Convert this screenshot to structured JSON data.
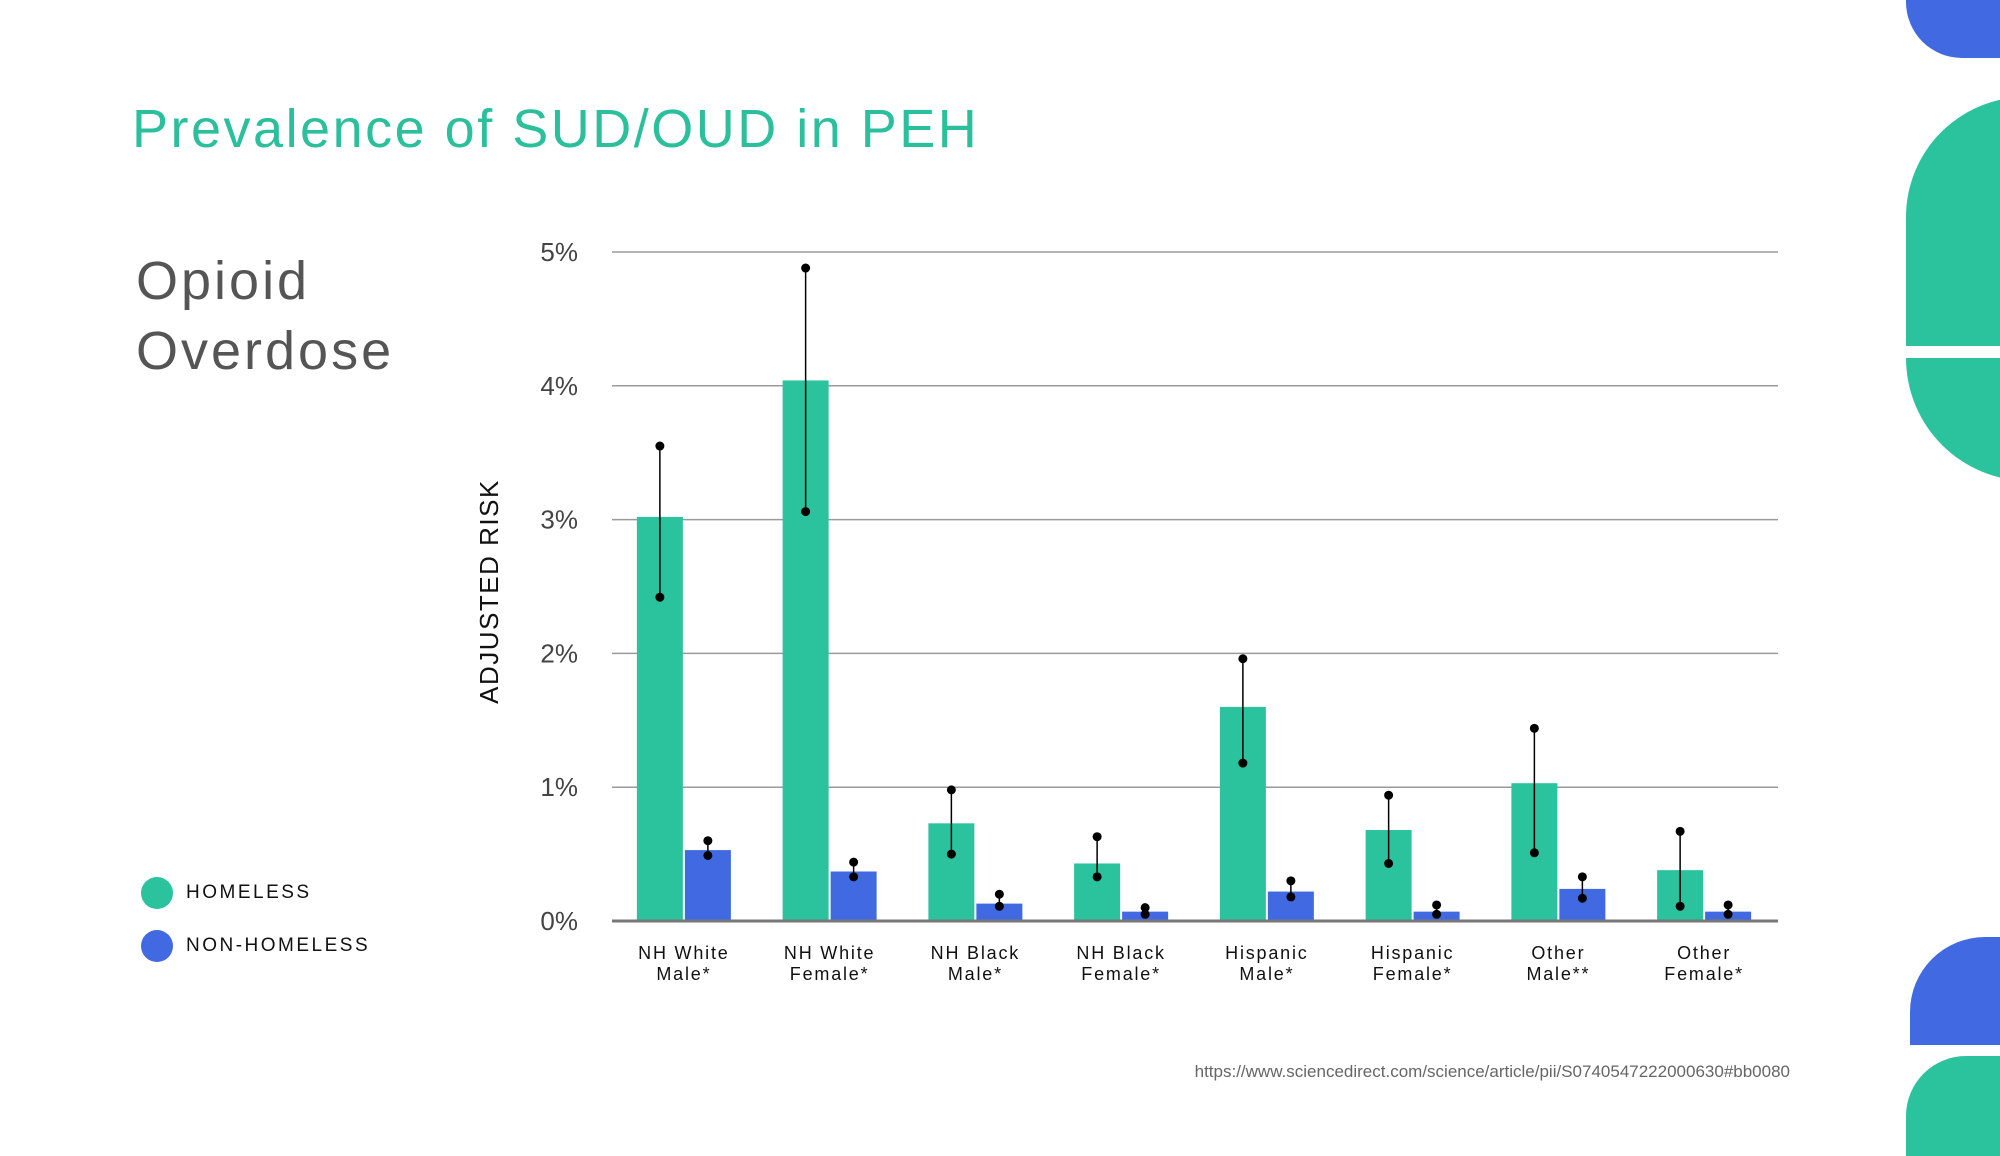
{
  "slide": {
    "title": "Prevalence of SUD/OUD in PEH",
    "subtitle": "Opioid Overdose",
    "source": "https://www.sciencedirect.com/science/article/pii/S0740547222000630#bb0080"
  },
  "legend": [
    {
      "label": "HOMELESS",
      "color": "#2bc39e"
    },
    {
      "label": "NON-HOMELESS",
      "color": "#4169e1"
    }
  ],
  "colors": {
    "homeless": "#2bc39e",
    "non_homeless": "#4169e1",
    "title": "#2bbf9c",
    "grid": "#9a9a9a",
    "deco_green": "#2bc39e",
    "deco_blue": "#4169e1"
  },
  "chart_data": {
    "type": "bar",
    "ylabel": "ADJUSTED RISK",
    "ylim": [
      0,
      5
    ],
    "yticks": [
      0,
      1,
      2,
      3,
      4,
      5
    ],
    "ytick_labels": [
      "0%",
      "1%",
      "2%",
      "3%",
      "4%",
      "5%"
    ],
    "grid": true,
    "categories": [
      [
        "NH White",
        "Male*"
      ],
      [
        "NH White",
        "Female*"
      ],
      [
        "NH Black",
        "Male*"
      ],
      [
        "NH Black",
        "Female*"
      ],
      [
        "Hispanic",
        "Male*"
      ],
      [
        "Hispanic",
        "Female*"
      ],
      [
        "Other",
        "Male**"
      ],
      [
        "Other",
        "Female*"
      ]
    ],
    "series": [
      {
        "name": "HOMELESS",
        "values": [
          3.02,
          4.04,
          0.73,
          0.43,
          1.6,
          0.68,
          1.03,
          0.38
        ],
        "ci_low": [
          2.42,
          3.06,
          0.5,
          0.33,
          1.18,
          0.43,
          0.51,
          0.11
        ],
        "ci_high": [
          3.55,
          4.88,
          0.98,
          0.63,
          1.96,
          0.94,
          1.44,
          0.67
        ]
      },
      {
        "name": "NON-HOMELESS",
        "values": [
          0.53,
          0.37,
          0.13,
          0.07,
          0.22,
          0.07,
          0.24,
          0.07
        ],
        "ci_low": [
          0.49,
          0.33,
          0.11,
          0.05,
          0.18,
          0.05,
          0.17,
          0.05
        ],
        "ci_high": [
          0.6,
          0.44,
          0.2,
          0.1,
          0.3,
          0.12,
          0.33,
          0.12
        ]
      }
    ]
  }
}
